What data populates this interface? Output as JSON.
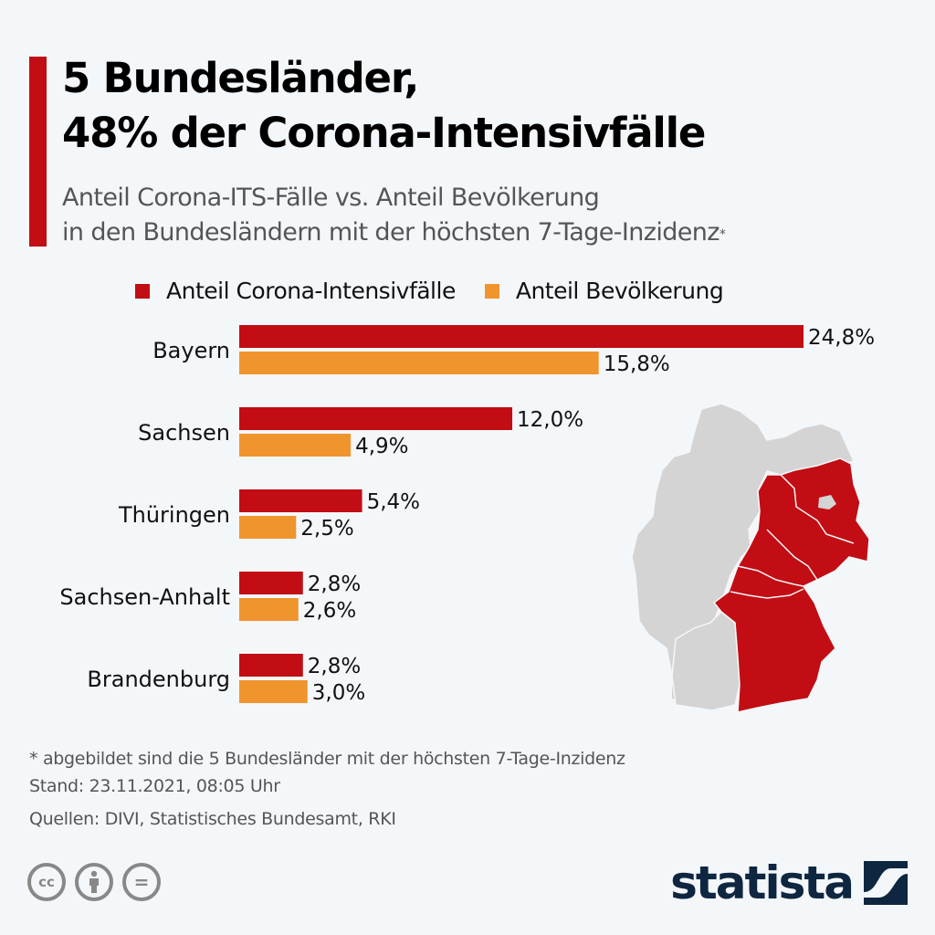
{
  "header": {
    "title_line1": "5 Bundesländer,",
    "title_line2": "48% der Corona-Intensivfälle",
    "subtitle_line1": "Anteil Corona-ITS-Fälle vs. Anteil Bevölkerung",
    "subtitle_line2": "in den Bundesländern mit der höchsten 7-Tage-Inzidenz",
    "subtitle_marker": "*"
  },
  "colors": {
    "accent": "#c10d13",
    "intensiv": "#c10d13",
    "bevoelkerung": "#f0942e",
    "map_highlight": "#c10d13",
    "map_other": "#d4d4d4",
    "logo": "#0f2640"
  },
  "chart_data": {
    "type": "bar",
    "orientation": "horizontal",
    "title": "5 Bundesländer, 48% der Corona-Intensivfälle",
    "xlabel": "",
    "ylabel": "",
    "categories": [
      "Bayern",
      "Sachsen",
      "Thüringen",
      "Sachsen-Anhalt",
      "Brandenburg"
    ],
    "series": [
      {
        "name": "Anteil Corona-Intensivfälle",
        "color": "#c10d13",
        "values": [
          24.8,
          12.0,
          5.4,
          2.8,
          2.8
        ],
        "labels": [
          "24,8%",
          "12,0%",
          "5,4%",
          "2,8%",
          "2,8%"
        ]
      },
      {
        "name": "Anteil Bevölkerung",
        "color": "#f0942e",
        "values": [
          15.8,
          4.9,
          2.5,
          2.6,
          3.0
        ],
        "labels": [
          "15,8%",
          "4,9%",
          "2,5%",
          "2,6%",
          "3,0%"
        ]
      }
    ],
    "unit": "%",
    "xlim": [
      0,
      25
    ],
    "grid": false,
    "legend_position": "top"
  },
  "map": {
    "label": "Deutschland-Karte",
    "highlighted_states": [
      "Bayern",
      "Sachsen",
      "Thüringen",
      "Sachsen-Anhalt",
      "Brandenburg"
    ]
  },
  "footer": {
    "note": "* abgebildet sind die 5 Bundesländer mit der höchsten 7-Tage-Inzidenz",
    "stand": "Stand: 23.11.2021, 08:05 Uhr",
    "sources": "Quellen: DIVI, Statistisches Bundesamt, RKI",
    "license_icons": [
      "cc-icon",
      "by-icon",
      "nd-icon"
    ],
    "cc_text": "cc",
    "nd_text": "=",
    "brand": "statista"
  }
}
